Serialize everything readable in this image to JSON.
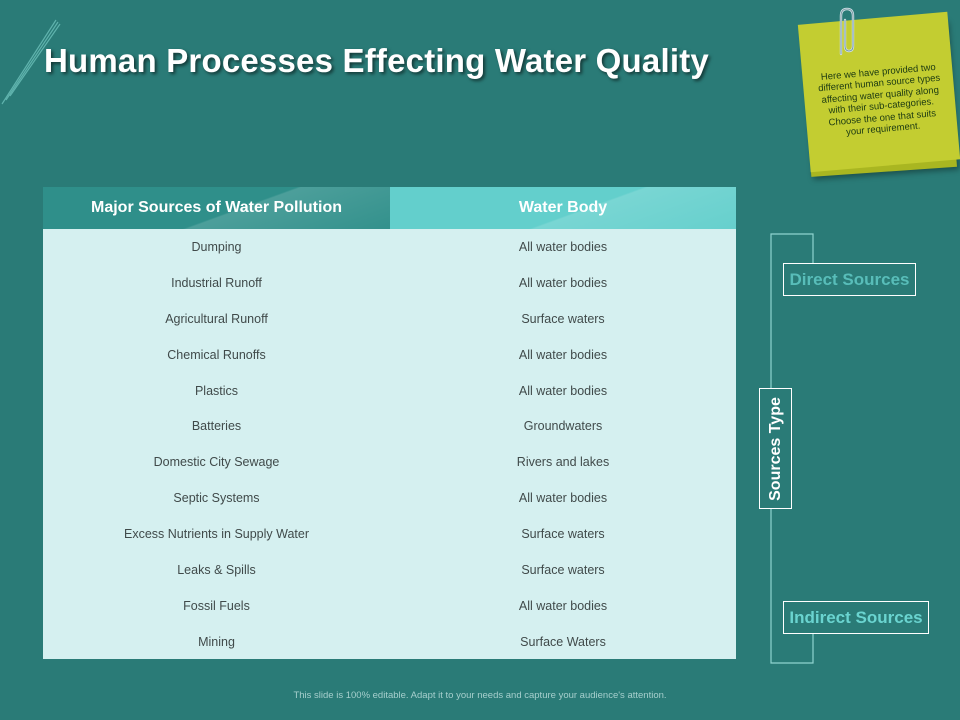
{
  "title": "Human Processes Effecting Water Quality",
  "note": {
    "text": "Here we have provided two different human source types affecting water quality along with their sub-categories. Choose the one that suits your requirement."
  },
  "table": {
    "headers": [
      "Major Sources of Water Pollution",
      "Water Body"
    ],
    "rows": [
      [
        "Dumping",
        "All water bodies"
      ],
      [
        "Industrial Runoff",
        "All water bodies"
      ],
      [
        "Agricultural Runoff",
        "Surface waters"
      ],
      [
        "Chemical Runoffs",
        "All water bodies"
      ],
      [
        "Plastics",
        "All water bodies"
      ],
      [
        "Batteries",
        "Groundwaters"
      ],
      [
        "Domestic City Sewage",
        "Rivers  and lakes"
      ],
      [
        "Septic Systems",
        "All water bodies"
      ],
      [
        "Excess Nutrients in Supply Water",
        "Surface waters"
      ],
      [
        "Leaks & Spills",
        "Surface waters"
      ],
      [
        "Fossil Fuels",
        "All water bodies"
      ],
      [
        "Mining",
        "Surface Waters"
      ]
    ]
  },
  "diagram": {
    "type_label": "Sources Type",
    "direct_label": "Direct Sources",
    "indirect_label": "Indirect Sources"
  },
  "footer": "This slide is 100% editable. Adapt it to your needs and capture your audience's attention.",
  "colors": {
    "background": "#2a7b77",
    "header_left": "#2f8f8a",
    "header_right": "#63cfcc",
    "table_body": "#d5f0f0",
    "note": "#c3cd31",
    "accent_text": "#6ad4d0"
  }
}
